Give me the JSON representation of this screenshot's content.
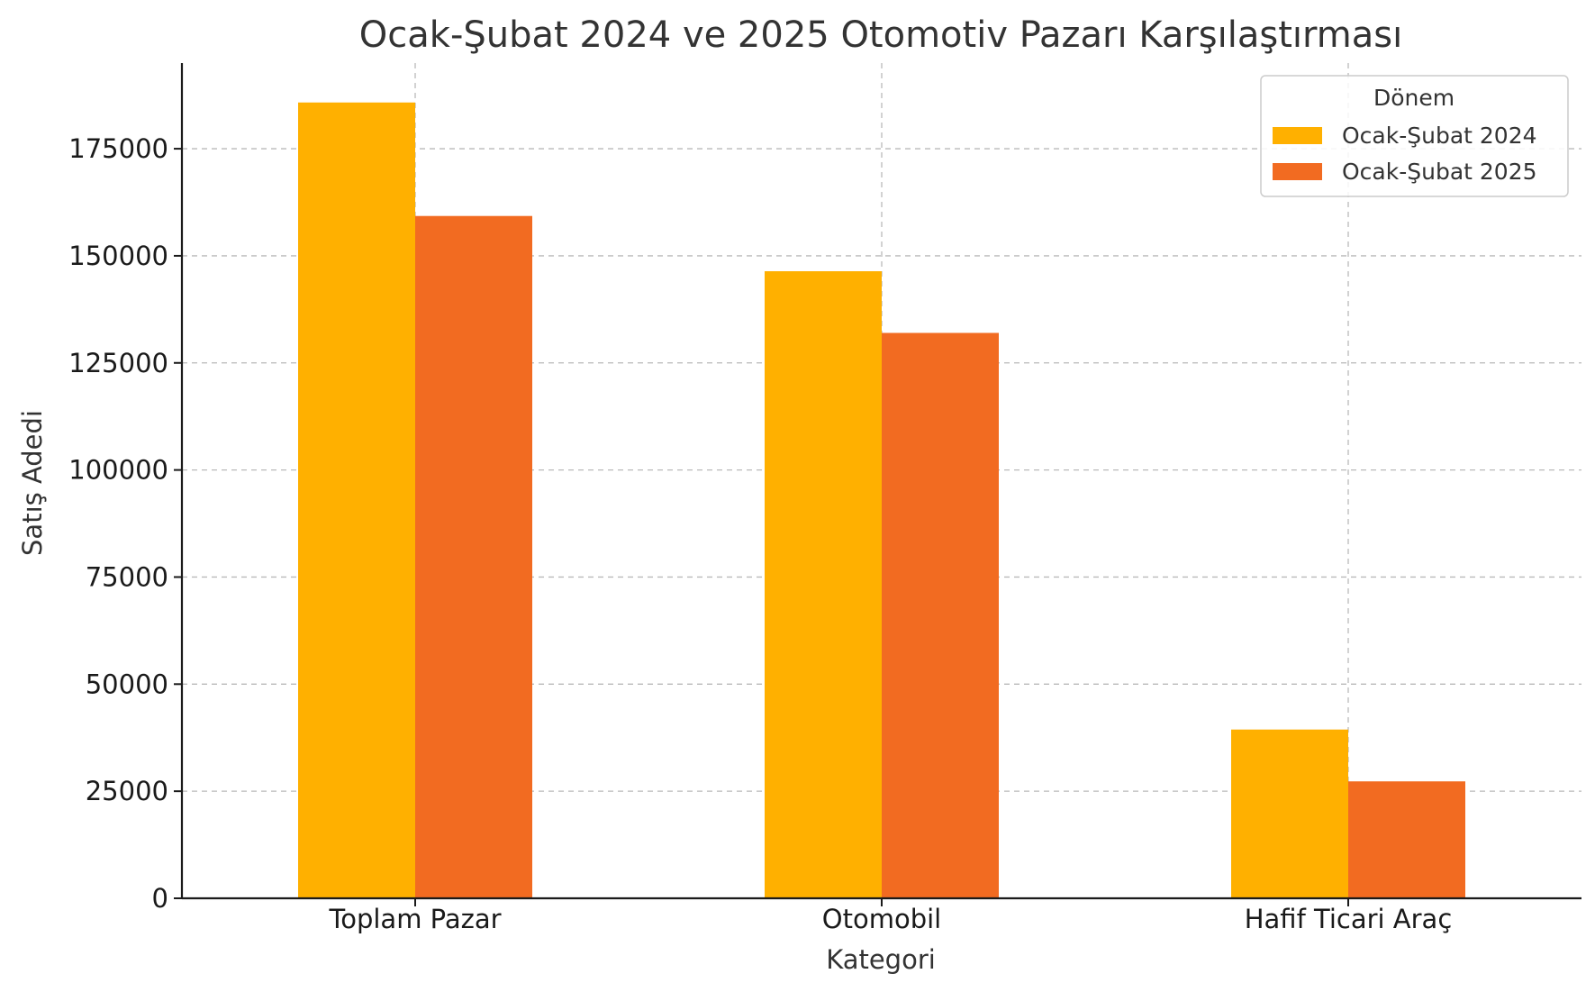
{
  "chart_data": {
    "type": "bar",
    "title": "Ocak-Şubat 2024 ve 2025 Otomotiv Pazarı Karşılaştırması",
    "xlabel": "Kategori",
    "ylabel": "Satış Adedi",
    "categories": [
      "Toplam Pazar",
      "Otomobil",
      "Hafif Ticari Araç"
    ],
    "series": [
      {
        "name": "Ocak-Şubat 2024",
        "values": [
          185800,
          146400,
          39400
        ],
        "color": "#FFB000"
      },
      {
        "name": "Ocak-Şubat 2025",
        "values": [
          159300,
          132000,
          27300
        ],
        "color": "#F26B21"
      }
    ],
    "ylim": [
      0,
      195000
    ],
    "yticks": [
      0,
      25000,
      50000,
      75000,
      100000,
      125000,
      150000,
      175000
    ],
    "grid": true,
    "legend": {
      "title": "Dönem",
      "position": "top-right"
    }
  }
}
